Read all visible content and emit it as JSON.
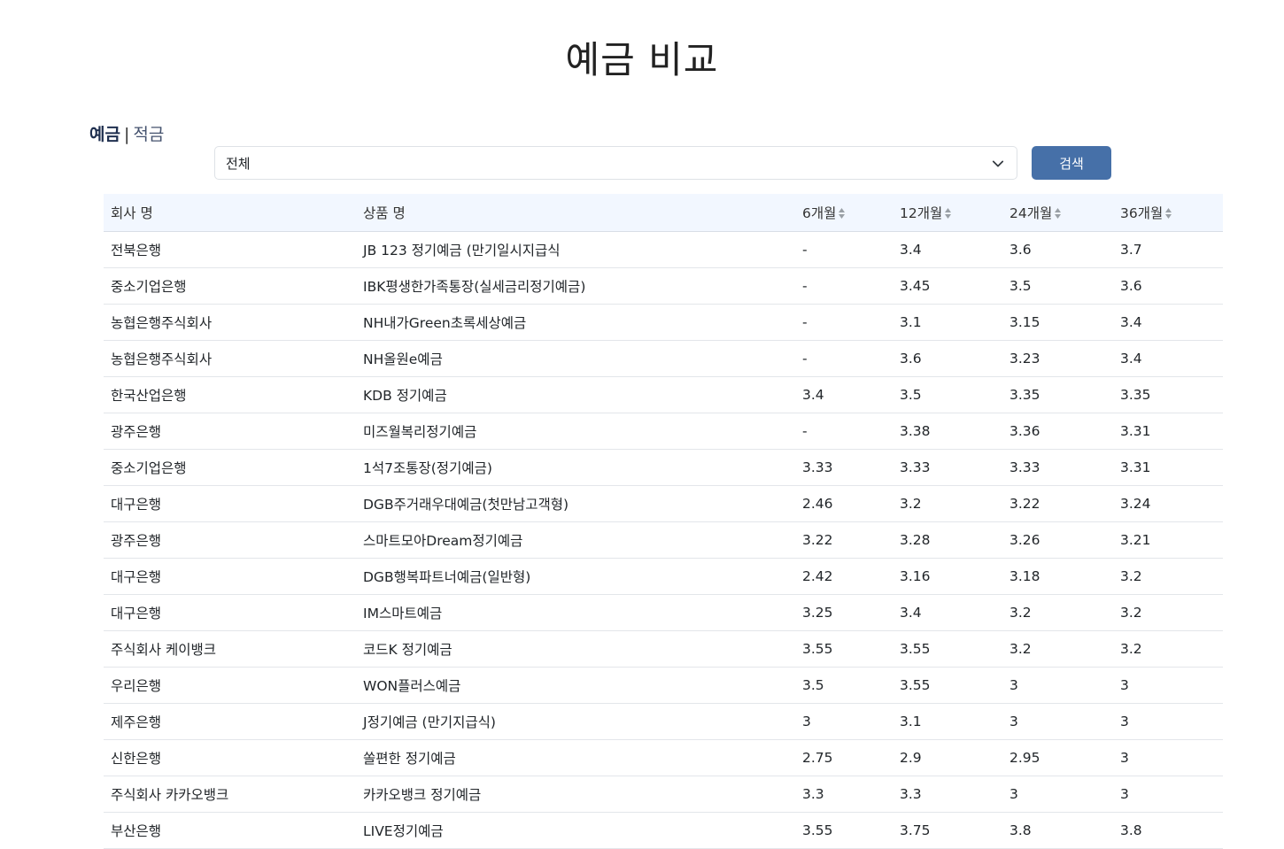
{
  "page": {
    "title": "예금 비교"
  },
  "tabs": {
    "active": "예금",
    "separator": "|",
    "other": "적금"
  },
  "filter": {
    "selected": "전체",
    "search_label": "검색"
  },
  "table": {
    "headers": [
      "회사 명",
      "상품 명",
      "6개월",
      "12개월",
      "24개월",
      "36개월"
    ],
    "rows": [
      [
        "전북은행",
        "JB 123 정기예금 (만기일시지급식",
        "-",
        "3.4",
        "3.6",
        "3.7"
      ],
      [
        "중소기업은행",
        "IBK평생한가족통장(실세금리정기예금)",
        "-",
        "3.45",
        "3.5",
        "3.6"
      ],
      [
        "농협은행주식회사",
        "NH내가Green초록세상예금",
        "-",
        "3.1",
        "3.15",
        "3.4"
      ],
      [
        "농협은행주식회사",
        "NH올원e예금",
        "-",
        "3.6",
        "3.23",
        "3.4"
      ],
      [
        "한국산업은행",
        "KDB 정기예금",
        "3.4",
        "3.5",
        "3.35",
        "3.35"
      ],
      [
        "광주은행",
        "미즈월복리정기예금",
        "-",
        "3.38",
        "3.36",
        "3.31"
      ],
      [
        "중소기업은행",
        "1석7조통장(정기예금)",
        "3.33",
        "3.33",
        "3.33",
        "3.31"
      ],
      [
        "대구은행",
        "DGB주거래우대예금(첫만남고객형)",
        "2.46",
        "3.2",
        "3.22",
        "3.24"
      ],
      [
        "광주은행",
        "스마트모아Dream정기예금",
        "3.22",
        "3.28",
        "3.26",
        "3.21"
      ],
      [
        "대구은행",
        "DGB행복파트너예금(일반형)",
        "2.42",
        "3.16",
        "3.18",
        "3.2"
      ],
      [
        "대구은행",
        "IM스마트예금",
        "3.25",
        "3.4",
        "3.2",
        "3.2"
      ],
      [
        "주식회사 케이뱅크",
        "코드K 정기예금",
        "3.55",
        "3.55",
        "3.2",
        "3.2"
      ],
      [
        "우리은행",
        "WON플러스예금",
        "3.5",
        "3.55",
        "3",
        "3"
      ],
      [
        "제주은행",
        "J정기예금 (만기지급식)",
        "3",
        "3.1",
        "3",
        "3"
      ],
      [
        "신한은행",
        "쏠편한 정기예금",
        "2.75",
        "2.9",
        "2.95",
        "3"
      ],
      [
        "주식회사 카카오뱅크",
        "카카오뱅크 정기예금",
        "3.3",
        "3.3",
        "3",
        "3"
      ],
      [
        "부산은행",
        "LIVE정기예금",
        "3.55",
        "3.75",
        "3.8",
        "3.8"
      ]
    ]
  },
  "icons": {
    "select": "chevron-down-icon",
    "sort": "sort-icon"
  }
}
